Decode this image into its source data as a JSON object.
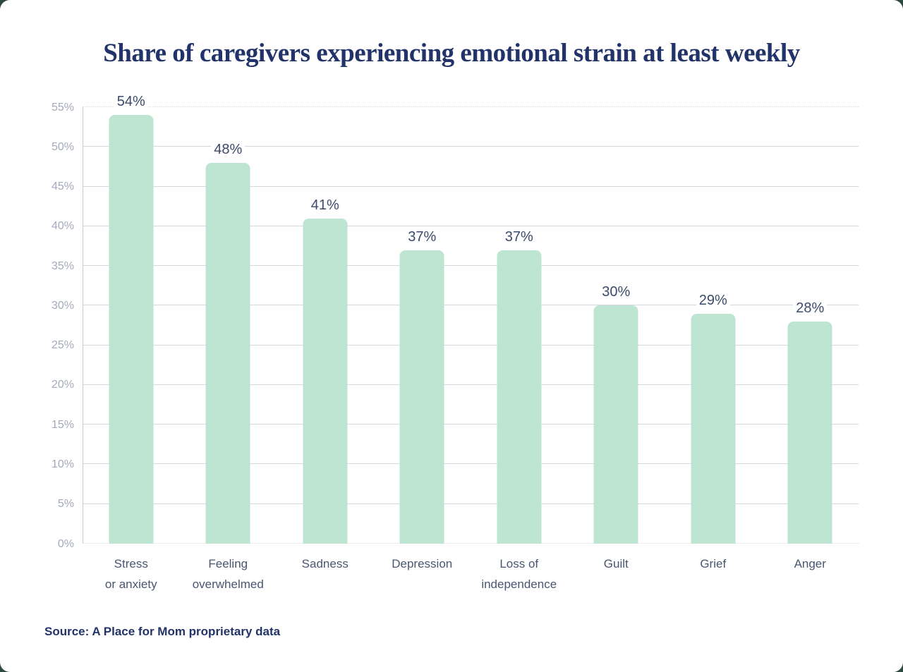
{
  "title": "Share of caregivers experiencing emotional strain at least weekly",
  "source": "Source: A Place for Mom proprietary data",
  "colors": {
    "outside_background": "#2d4a40",
    "card_background": "#ffffff",
    "bar_fill": "#bee5d1",
    "title_text": "#22336a",
    "value_label_text": "#3c4b6b",
    "category_label_text": "#4a5571",
    "tick_label_text": "#a4aabb",
    "gridline": "#d5d7df"
  },
  "chart_data": {
    "type": "bar",
    "title": "Share of caregivers experiencing emotional strain at least weekly",
    "categories": [
      "Stress\nor anxiety",
      "Feeling\noverwhelmed",
      "Sadness",
      "Depression",
      "Loss of\nindependence",
      "Guilt",
      "Grief",
      "Anger"
    ],
    "values": [
      54,
      48,
      41,
      37,
      37,
      30,
      29,
      28
    ],
    "value_labels": [
      "54%",
      "48%",
      "41%",
      "37%",
      "37%",
      "30%",
      "29%",
      "28%"
    ],
    "xlabel": "",
    "ylabel": "",
    "ylim": [
      0,
      55
    ],
    "ytick_step": 5,
    "ytick_labels": [
      "0%",
      "5%",
      "10%",
      "15%",
      "20%",
      "25%",
      "30%",
      "35%",
      "40%",
      "45%",
      "50%",
      "55%"
    ],
    "grid": true,
    "legend": false,
    "source": "Source: A Place for Mom proprietary data"
  }
}
